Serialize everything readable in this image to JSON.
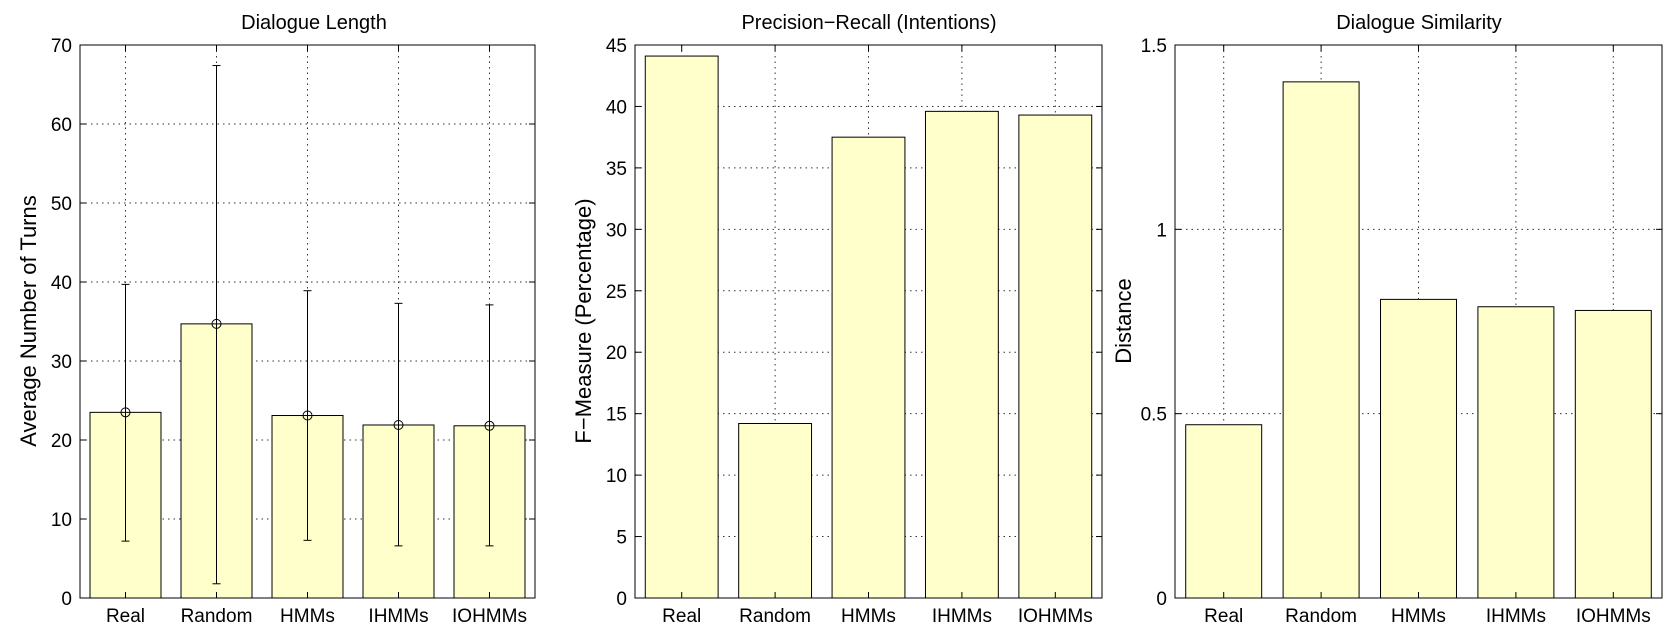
{
  "chart_data": [
    {
      "type": "bar",
      "title": "Dialogue Length",
      "xlabel": "",
      "ylabel": "Average Number of Turns",
      "categories": [
        "Real",
        "Random",
        "HMMs",
        "IHMMs",
        "IOHMMs"
      ],
      "values": [
        23.5,
        34.7,
        23.1,
        21.9,
        21.8
      ],
      "error_low": [
        7.2,
        1.8,
        7.3,
        6.6,
        6.6
      ],
      "error_high": [
        39.7,
        67.4,
        38.9,
        37.3,
        37.1
      ],
      "ylim": [
        0,
        70
      ],
      "yticks": [
        "0",
        "10",
        "20",
        "30",
        "40",
        "50",
        "60",
        "70"
      ],
      "grid": true,
      "bar_color": "#ffffcc"
    },
    {
      "type": "bar",
      "title": "Precision−Recall (Intentions)",
      "xlabel": "",
      "ylabel": "F−Measure (Percentage)",
      "categories": [
        "Real",
        "Random",
        "HMMs",
        "IHMMs",
        "IOHMMs"
      ],
      "values": [
        44.1,
        14.2,
        37.5,
        39.6,
        39.3
      ],
      "ylim": [
        0,
        45
      ],
      "yticks": [
        "0",
        "5",
        "10",
        "15",
        "20",
        "25",
        "30",
        "35",
        "40",
        "45"
      ],
      "grid": true,
      "bar_color": "#ffffcc"
    },
    {
      "type": "bar",
      "title": "Dialogue Similarity",
      "xlabel": "",
      "ylabel": "Distance",
      "categories": [
        "Real",
        "Random",
        "HMMs",
        "IHMMs",
        "IOHMMs"
      ],
      "values": [
        0.47,
        1.4,
        0.81,
        0.79,
        0.78
      ],
      "ylim": [
        0,
        1.5
      ],
      "yticks": [
        "0",
        "0.5",
        "1",
        "1.5"
      ],
      "grid": true,
      "bar_color": "#ffffcc"
    }
  ]
}
